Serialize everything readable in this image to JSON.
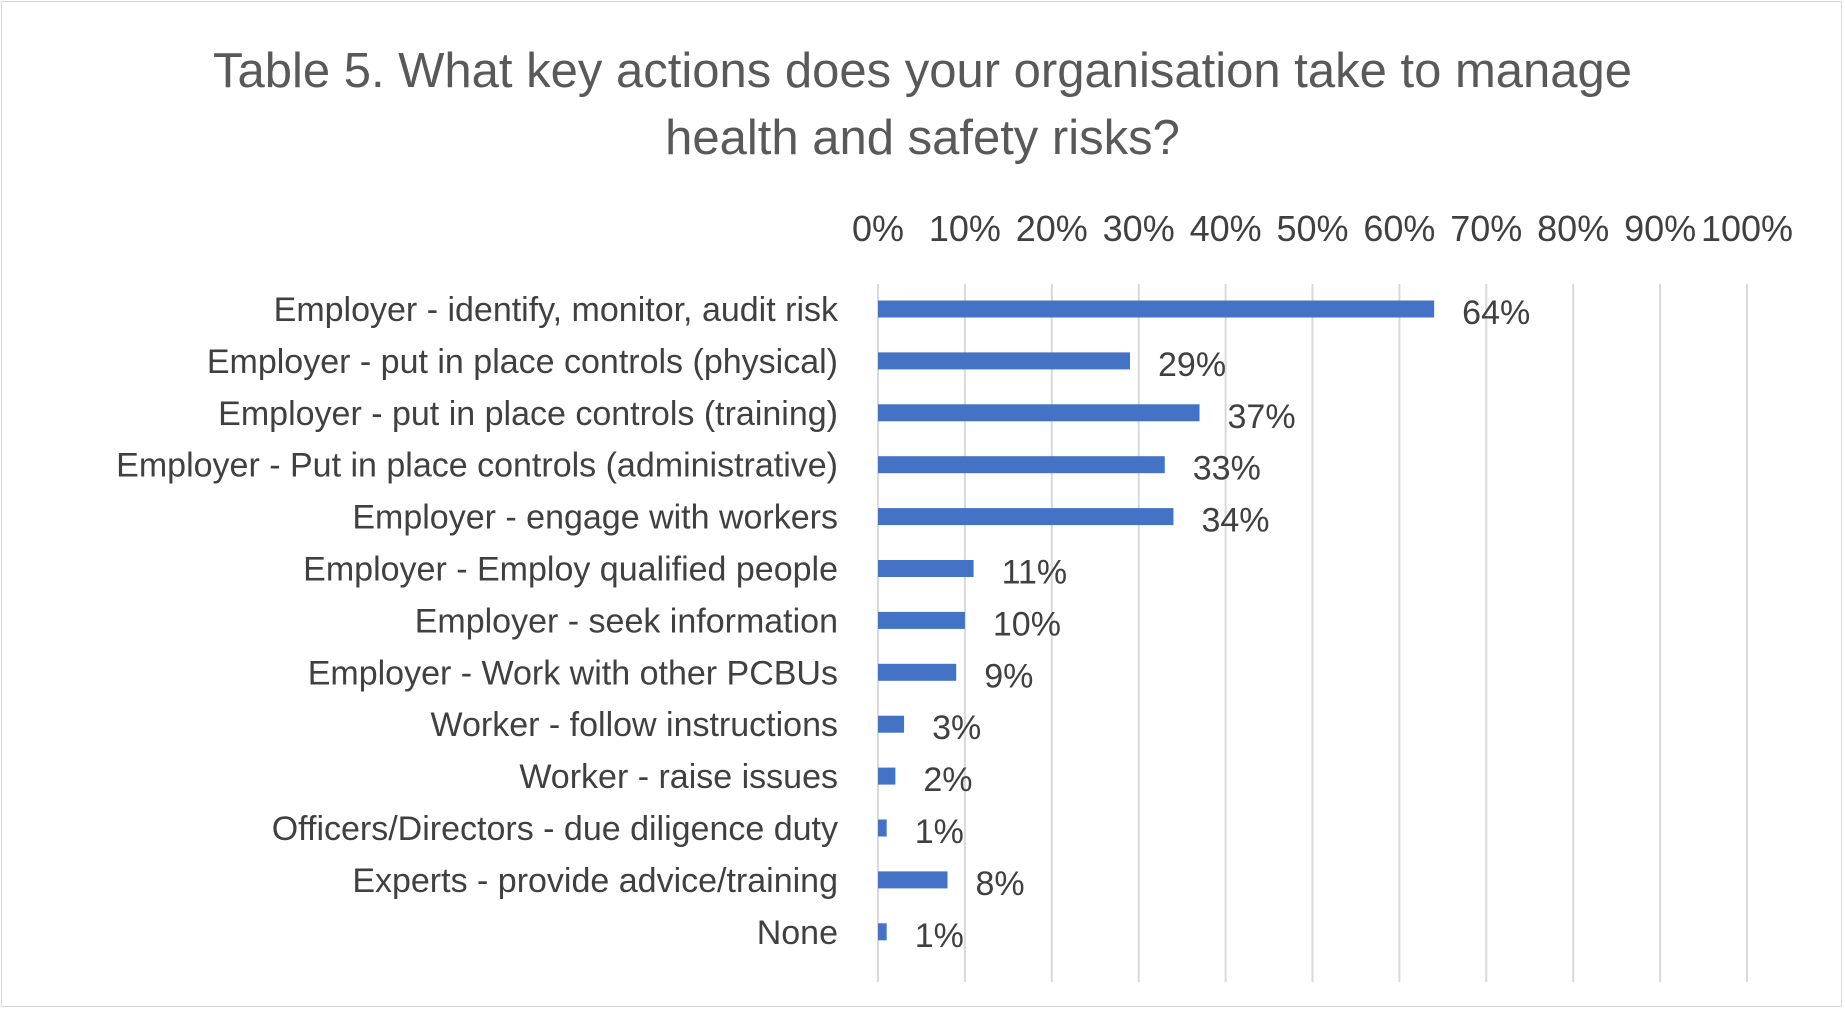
{
  "chart_data": {
    "type": "bar",
    "orientation": "horizontal",
    "title": "Table 5. What key actions does your organisation take to manage\nhealth and safety risks?",
    "categories": [
      "Employer - identify, monitor, audit risk",
      "Employer - put in place controls (physical)",
      "Employer - put in place controls (training)",
      "Employer - Put in place controls (administrative)",
      "Employer - engage with workers",
      "Employer - Employ qualified people",
      "Employer - seek information",
      "Employer - Work with other PCBUs",
      "Worker - follow instructions",
      "Worker - raise issues",
      "Officers/Directors - due diligence duty",
      "Experts - provide advice/training",
      "None"
    ],
    "values": [
      64,
      29,
      37,
      33,
      34,
      11,
      10,
      9,
      3,
      2,
      1,
      8,
      1
    ],
    "data_labels": [
      "64%",
      "29%",
      "37%",
      "33%",
      "34%",
      "11%",
      "10%",
      "9%",
      "3%",
      "2%",
      "1%",
      "8%",
      "1%"
    ],
    "xlim": [
      0,
      100
    ],
    "x_ticks": [
      0,
      10,
      20,
      30,
      40,
      50,
      60,
      70,
      80,
      90,
      100
    ],
    "x_tick_labels": [
      "0%",
      "10%",
      "20%",
      "30%",
      "40%",
      "50%",
      "60%",
      "70%",
      "80%",
      "90%",
      "100%"
    ],
    "x_axis_position": "top",
    "grid": true,
    "legend": "none",
    "colors": {
      "bar": "#4472c4",
      "gridline": "#d9d9d9",
      "text": "#404040",
      "title": "#595959"
    }
  }
}
